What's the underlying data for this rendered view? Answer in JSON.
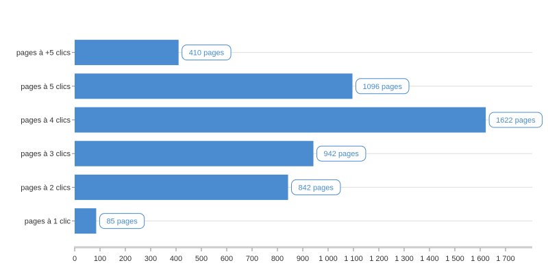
{
  "colors": {
    "bar": "#4a8ccf",
    "gridline": "#dddddd",
    "axis": "#cccccc",
    "label_border": "#4a8ccf",
    "label_text": "#4a8ccf",
    "text": "#333333"
  },
  "chart_data": {
    "type": "bar",
    "orientation": "horizontal",
    "title": "",
    "xlabel": "",
    "ylabel": "",
    "categories": [
      "pages à +5 clics",
      "pages à 5 clics",
      "pages à 4 clics",
      "pages à 3 clics",
      "pages à 2 clics",
      "pages à 1 clic"
    ],
    "values": [
      410,
      1096,
      1622,
      942,
      842,
      85
    ],
    "data_labels": [
      "410 pages",
      "1096 pages",
      "1622 pages",
      "942 pages",
      "842 pages",
      "85 pages"
    ],
    "xlim": [
      0,
      1800
    ],
    "ticks": [
      0,
      100,
      200,
      300,
      400,
      500,
      600,
      700,
      800,
      900,
      1000,
      1100,
      1200,
      1300,
      1400,
      1500,
      1600,
      1700
    ],
    "tick_labels": [
      "0",
      "100",
      "200",
      "300",
      "400",
      "500",
      "600",
      "700",
      "800",
      "900",
      "1 000",
      "1 100",
      "1 200",
      "1 300",
      "1 400",
      "1 500",
      "1 600",
      "1 700"
    ],
    "grid": true,
    "legend": "none"
  }
}
